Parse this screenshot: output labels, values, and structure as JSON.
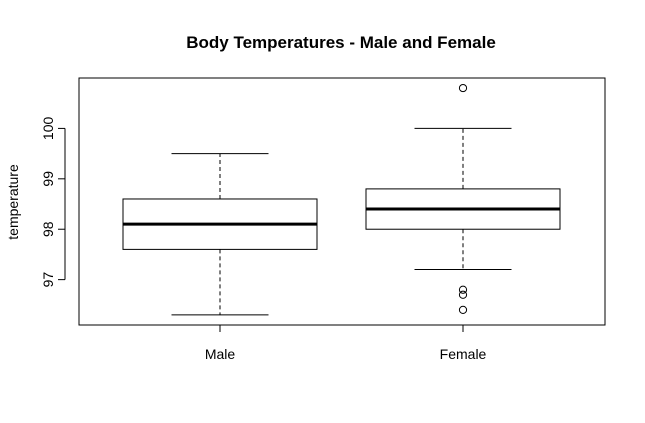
{
  "chart_data": {
    "type": "box",
    "title": "Body Temperatures - Male and Female",
    "xlabel": "",
    "ylabel": "temperature",
    "categories": [
      "Male",
      "Female"
    ],
    "y_ticks": [
      97,
      98,
      99,
      100
    ],
    "ylim": [
      96.1,
      101.0
    ],
    "grid": false,
    "boxes": [
      {
        "category": "Male",
        "whisker_low": 96.3,
        "q1": 97.6,
        "median": 98.1,
        "q3": 98.6,
        "whisker_high": 99.5,
        "outliers": []
      },
      {
        "category": "Female",
        "whisker_low": 97.2,
        "q1": 98.0,
        "median": 98.4,
        "q3": 98.8,
        "whisker_high": 100.0,
        "outliers": [
          100.8,
          96.8,
          96.7,
          96.4
        ]
      }
    ]
  }
}
